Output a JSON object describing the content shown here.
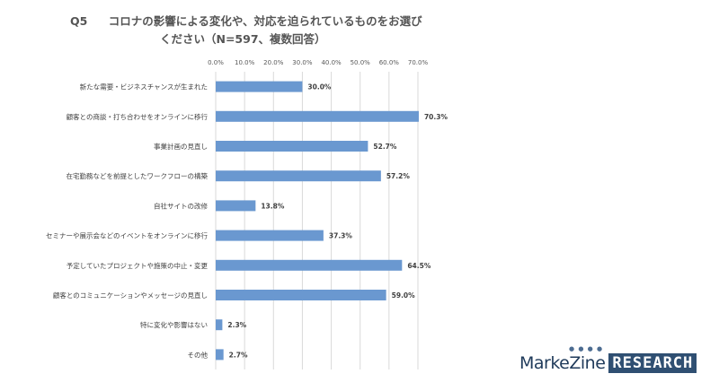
{
  "title": {
    "number": "Q5",
    "line1": "コロナの影響による変化や、対応を迫られているものをお選び",
    "line2": "ください（N=597、複数回答）"
  },
  "chart_data": {
    "type": "bar",
    "orientation": "horizontal",
    "xlim": [
      0,
      70
    ],
    "xticks": [
      "0.0%",
      "10.0%",
      "20.0%",
      "30.0%",
      "40.0%",
      "50.0%",
      "60.0%",
      "70.0%"
    ],
    "grid": true,
    "bar_color": "#6a98d0",
    "categories": [
      "新たな需要・ビジネスチャンスが生まれた",
      "顧客との商談・打ち合わせをオンラインに移行",
      "事業計画の見直し",
      "在宅勤務などを前提としたワークフローの構築",
      "自社サイトの改修",
      "セミナーや展示会などのイベントをオンラインに移行",
      "予定していたプロジェクトや施策の中止・変更",
      "顧客とのコミュニケーションやメッセージの見直し",
      "特に変化や影響はない",
      "その他"
    ],
    "values": [
      30.0,
      70.3,
      52.7,
      57.2,
      13.8,
      37.3,
      64.5,
      59.0,
      2.3,
      2.7
    ],
    "value_labels": [
      "30.0%",
      "70.3%",
      "52.7%",
      "57.2%",
      "13.8%",
      "37.3%",
      "64.5%",
      "59.0%",
      "2.3%",
      "2.7%"
    ]
  },
  "logo": {
    "dots": "● ● ● ●",
    "part1": "MarkeZine",
    "part2": "RESEARCH"
  }
}
